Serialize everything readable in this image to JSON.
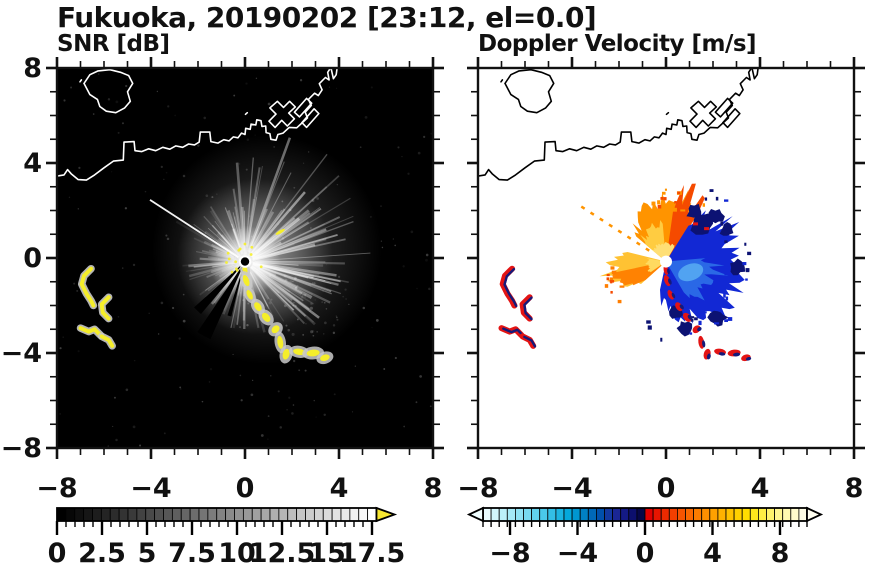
{
  "title": "Fukuoka, 20190202 [23:12, el=0.0]",
  "site": "Fukuoka",
  "date": "20190202",
  "time": "23:12",
  "elevation": "el=0.0",
  "chart_data": [
    {
      "type": "heatmap",
      "panel": "left",
      "title": "SNR [dB]",
      "xlim": [
        -8,
        8
      ],
      "ylim": [
        -8,
        8
      ],
      "xticks": [
        -8,
        -4,
        0,
        4,
        8
      ],
      "yticks": [
        8,
        4,
        0,
        -4,
        -8
      ],
      "xtick_labels": [
        "−8",
        "−4",
        "0",
        "4",
        "8"
      ],
      "ytick_labels": [
        "8",
        "4",
        "0",
        "−4",
        "−8"
      ],
      "minor_tick_step": 1,
      "background": "#000000",
      "coast_color": "#ffffff",
      "radar_center": [
        0,
        -0.15
      ],
      "colorbar": {
        "style": "grayscale",
        "min": 0,
        "max": 17.75,
        "segments": 36,
        "minor_step": 0.5,
        "tick_values": [
          0,
          2.5,
          5,
          7.5,
          10,
          12.5,
          15,
          17.5
        ],
        "tick_labels": [
          "0",
          "2.5",
          "5",
          "7.5",
          "10",
          "12.5",
          "15",
          "17.5"
        ],
        "overflow_arrow_color": "#f7e731"
      },
      "features": {
        "echo_fan": {
          "bright_sector_deg": [
            -60,
            95
          ],
          "max_radius_units": 4.2,
          "streaks": 150,
          "color": "#ffffff"
        },
        "shadow_wedges": [
          {
            "a1": 222,
            "a2": 230,
            "r": 2.9
          },
          {
            "a1": 236,
            "a2": 246,
            "r": 3.6
          },
          {
            "a1": 252,
            "a2": 257,
            "r": 2.4
          }
        ],
        "thin_ray": {
          "angle": 147,
          "r": 4.8
        },
        "isolated_dash": [
          1.5,
          1.1,
          0.4,
          0.12,
          -30
        ],
        "strong_color": "#f5ee2a",
        "halo_color": "#c9c9c9"
      }
    },
    {
      "type": "heatmap",
      "panel": "right",
      "title": "Doppler Velocity [m/s]",
      "xlim": [
        -8,
        8
      ],
      "ylim": [
        -8,
        8
      ],
      "xticks": [
        -8,
        -4,
        0,
        4,
        8
      ],
      "yticks": [
        8,
        4,
        0,
        -4,
        -8
      ],
      "xtick_labels": [
        "−8",
        "−4",
        "0",
        "4",
        "8"
      ],
      "ytick_labels": [
        "8",
        "4",
        "0",
        "−4",
        "−8"
      ],
      "minor_tick_step": 1,
      "background": "#ffffff",
      "coast_color": "#000000",
      "radar_center": [
        0,
        -0.15
      ],
      "colorbar": {
        "style": "diverging",
        "min": -9.6,
        "max": 9.6,
        "segments": 40,
        "tick_values": [
          -8,
          -4,
          0,
          4,
          8
        ],
        "tick_labels": [
          "−8",
          "−4",
          "0",
          "4",
          "8"
        ],
        "arrow_left_color": "#effdfe",
        "arrow_right_color": "#fffef0",
        "colors": [
          "#e8fcff",
          "#d2f6fc",
          "#bcf0fa",
          "#a5e9f7",
          "#8fe2f4",
          "#78daf1",
          "#61d2ee",
          "#4ac9ea",
          "#33bfe6",
          "#1cb4e1",
          "#05a8db",
          "#0096d0",
          "#0080c4",
          "#0068b8",
          "#0050ac",
          "#1238a0",
          "#1a2694",
          "#141a85",
          "#0c0f6e",
          "#060748",
          "#e00000",
          "#e71500",
          "#ed2a00",
          "#f23f00",
          "#f65400",
          "#f96800",
          "#fb7c00",
          "#fd8f00",
          "#fea100",
          "#ffb200",
          "#ffc200",
          "#ffd000",
          "#ffdd00",
          "#ffe71c",
          "#ffee44",
          "#fff36c",
          "#fff690",
          "#fff9b0",
          "#fffbcc",
          "#fffde4"
        ]
      },
      "features": {
        "blue_mass": {
          "table": [
            [
              -102,
              1.1
            ],
            [
              -95,
              1.7
            ],
            [
              -80,
              2.2
            ],
            [
              -60,
              2.65
            ],
            [
              -40,
              3.0
            ],
            [
              -20,
              3.1
            ],
            [
              0,
              2.85
            ],
            [
              20,
              2.6
            ],
            [
              40,
              2.3
            ],
            [
              58,
              1.9
            ]
          ],
          "fill": "#1228d4"
        },
        "blue_light": {
          "table": [
            [
              -60,
              1.6
            ],
            [
              -30,
              2.05
            ],
            [
              5,
              1.7
            ]
          ],
          "fill": "#2d6fe8"
        },
        "blue_bright_spot": [
          1.05,
          -0.6,
          0.55,
          0.35,
          -20,
          "#55aaf2"
        ],
        "navy_patches": [
          [
            1.55,
            1.45,
            0.5
          ],
          [
            2.1,
            1.75,
            0.32
          ],
          [
            1.2,
            1.95,
            0.3
          ],
          [
            2.6,
            1.2,
            0.28
          ],
          [
            0.45,
            -2.25,
            0.3
          ],
          [
            0.8,
            -2.95,
            0.28
          ],
          [
            3.05,
            -0.4,
            0.3
          ],
          [
            2.2,
            -2.5,
            0.35
          ]
        ],
        "navy_color": "#0c1273",
        "orange_fan": {
          "table": [
            [
              58,
              2.35
            ],
            [
              75,
              2.6
            ],
            [
              90,
              2.55
            ],
            [
              105,
              2.45
            ],
            [
              120,
              2.25
            ],
            [
              140,
              1.55
            ]
          ],
          "fill": "#ff9400"
        },
        "red_edge": {
          "table": [
            [
              56,
              2.2
            ],
            [
              70,
              2.5
            ],
            [
              82,
              2.35
            ]
          ],
          "fill": "#f54a00"
        },
        "yellow_inner": {
          "table": [
            [
              95,
              1.5
            ],
            [
              120,
              1.5
            ],
            [
              140,
              1.15
            ]
          ],
          "fill": "#ffcf45"
        },
        "core_color": "#ffdf75",
        "west_fan": {
          "table": [
            [
              166,
              1.5
            ],
            [
              180,
              2.3
            ],
            [
              195,
              2.5
            ],
            [
              205,
              2.2
            ],
            [
              222,
              1.3
            ]
          ],
          "fill": "#ffc233"
        },
        "west_fan_lower": {
          "table": [
            [
              192,
              2.3
            ],
            [
              205,
              2.0
            ],
            [
              222,
              1.2
            ]
          ],
          "fill": "#ff7e00"
        },
        "dashed_ray": {
          "angle": 147,
          "r": 4.3,
          "color": "#ff9400"
        },
        "chain_colors": [
          "#e31414",
          "#151a7a"
        ],
        "red_specks": [
          [
            1.15,
            1.5
          ],
          [
            1.62,
            1.3
          ]
        ]
      }
    }
  ],
  "echo_chain": [
    [
      0.0,
      -0.5,
      0.18,
      0.4,
      -10
    ],
    [
      0.05,
      -0.95,
      0.22,
      0.45,
      -20
    ],
    [
      0.2,
      -1.55,
      0.2,
      0.4,
      -25
    ],
    [
      0.55,
      -2.05,
      0.24,
      0.38,
      -35
    ],
    [
      0.9,
      -2.5,
      0.26,
      0.4,
      -40
    ],
    [
      1.3,
      -3.0,
      0.34,
      0.26,
      -42
    ],
    [
      1.5,
      -3.55,
      0.22,
      0.5,
      -8
    ],
    [
      1.75,
      -4.05,
      0.26,
      0.42,
      14
    ],
    [
      2.3,
      -3.95,
      0.46,
      0.24,
      8
    ],
    [
      2.9,
      -4.0,
      0.5,
      0.26,
      -6
    ],
    [
      3.4,
      -4.2,
      0.38,
      0.24,
      -18
    ]
  ],
  "echo_arcs": [
    [
      [
        -6.55,
        -0.45
      ],
      [
        -6.85,
        -0.75
      ],
      [
        -6.95,
        -1.1
      ],
      [
        -6.75,
        -1.5
      ],
      [
        -6.55,
        -1.8
      ],
      [
        -6.45,
        -2.0
      ]
    ],
    [
      [
        -5.8,
        -1.65
      ],
      [
        -6.1,
        -1.95
      ],
      [
        -6.05,
        -2.3
      ],
      [
        -5.8,
        -2.55
      ]
    ],
    [
      [
        -7.0,
        -2.95
      ],
      [
        -6.65,
        -3.1
      ],
      [
        -6.4,
        -3.0
      ],
      [
        -6.15,
        -3.25
      ]
    ],
    [
      [
        -6.1,
        -3.3
      ],
      [
        -5.8,
        -3.45
      ],
      [
        -5.65,
        -3.7
      ]
    ]
  ],
  "coastline": {
    "island": [
      [
        -6.85,
        7.35
      ],
      [
        -6.6,
        7.72
      ],
      [
        -6.25,
        7.88
      ],
      [
        -5.75,
        7.93
      ],
      [
        -5.3,
        7.82
      ],
      [
        -4.95,
        7.68
      ],
      [
        -4.78,
        7.35
      ],
      [
        -5.0,
        7.0
      ],
      [
        -4.88,
        6.6
      ],
      [
        -5.12,
        6.32
      ],
      [
        -5.5,
        6.12
      ],
      [
        -5.9,
        6.18
      ],
      [
        -6.18,
        6.38
      ],
      [
        -6.28,
        6.68
      ],
      [
        -6.6,
        6.88
      ],
      [
        -6.85,
        7.35
      ]
    ],
    "main": [
      [
        -8,
        3.45
      ],
      [
        -7.7,
        3.5
      ],
      [
        -7.55,
        3.72
      ],
      [
        -7.4,
        3.55
      ],
      [
        -7.1,
        3.3
      ],
      [
        -6.75,
        3.28
      ],
      [
        -6.4,
        3.5
      ],
      [
        -6.0,
        3.8
      ],
      [
        -5.6,
        4.08
      ],
      [
        -5.18,
        4.12
      ],
      [
        -5.15,
        4.88
      ],
      [
        -4.72,
        4.9
      ],
      [
        -4.68,
        4.52
      ],
      [
        -4.4,
        4.48
      ],
      [
        -4.1,
        4.6
      ],
      [
        -3.8,
        4.52
      ],
      [
        -3.5,
        4.66
      ],
      [
        -3.2,
        4.58
      ],
      [
        -2.95,
        4.72
      ],
      [
        -2.65,
        4.66
      ],
      [
        -2.4,
        4.8
      ],
      [
        -2.15,
        4.76
      ],
      [
        -1.95,
        4.88
      ],
      [
        -1.9,
        5.3
      ],
      [
        -1.5,
        5.3
      ],
      [
        -1.45,
        4.9
      ],
      [
        -1.15,
        4.84
      ],
      [
        -0.9,
        4.98
      ],
      [
        -0.68,
        4.93
      ],
      [
        -0.5,
        5.1
      ],
      [
        -0.3,
        5.06
      ],
      [
        -0.15,
        5.26
      ],
      [
        0.0,
        5.2
      ],
      [
        0.03,
        5.46
      ],
      [
        0.22,
        5.42
      ],
      [
        0.26,
        5.64
      ],
      [
        0.46,
        5.6
      ],
      [
        0.5,
        5.82
      ],
      [
        0.68,
        5.78
      ],
      [
        0.72,
        5.54
      ],
      [
        0.88,
        5.56
      ],
      [
        0.9,
        5.28
      ],
      [
        1.06,
        5.24
      ],
      [
        1.1,
        5.0
      ],
      [
        1.32,
        4.96
      ],
      [
        1.4,
        5.2
      ],
      [
        1.62,
        5.26
      ],
      [
        1.88,
        5.5
      ],
      [
        2.2,
        5.48
      ],
      [
        2.66,
        5.9
      ],
      [
        2.56,
        6.14
      ],
      [
        2.82,
        6.42
      ],
      [
        2.7,
        6.68
      ],
      [
        2.96,
        6.94
      ],
      [
        3.12,
        6.84
      ],
      [
        3.28,
        7.08
      ],
      [
        3.16,
        7.34
      ],
      [
        3.42,
        7.6
      ],
      [
        3.58,
        7.5
      ],
      [
        3.52,
        7.82
      ],
      [
        3.64,
        8.0
      ]
    ],
    "pier_cross": [
      [
        1.28,
        5.5
      ],
      [
        1.02,
        5.76
      ],
      [
        1.32,
        6.06
      ],
      [
        1.06,
        6.32
      ],
      [
        1.38,
        6.6
      ],
      [
        1.64,
        6.34
      ],
      [
        1.9,
        6.6
      ],
      [
        2.14,
        6.36
      ],
      [
        1.86,
        6.1
      ],
      [
        2.1,
        5.86
      ],
      [
        1.8,
        5.56
      ],
      [
        1.56,
        5.8
      ],
      [
        1.28,
        5.5
      ]
    ],
    "pier_a": [
      [
        2.1,
        6.14
      ],
      [
        2.62,
        6.72
      ],
      [
        2.84,
        6.52
      ],
      [
        2.32,
        5.94
      ],
      [
        2.1,
        6.14
      ]
    ],
    "pier_b": [
      [
        2.42,
        5.7
      ],
      [
        2.94,
        6.28
      ],
      [
        3.14,
        6.08
      ],
      [
        2.62,
        5.5
      ],
      [
        2.42,
        5.7
      ]
    ],
    "top_v": [
      [
        3.66,
        8.0
      ],
      [
        3.76,
        7.55
      ],
      [
        3.88,
        7.72
      ],
      [
        3.92,
        8.0
      ]
    ],
    "speck": [
      [
        0.02,
        6.05
      ],
      [
        0.1,
        6.12
      ]
    ],
    "island_speck": [
      [
        -7.02,
        7.42
      ],
      [
        -6.96,
        7.5
      ]
    ]
  }
}
